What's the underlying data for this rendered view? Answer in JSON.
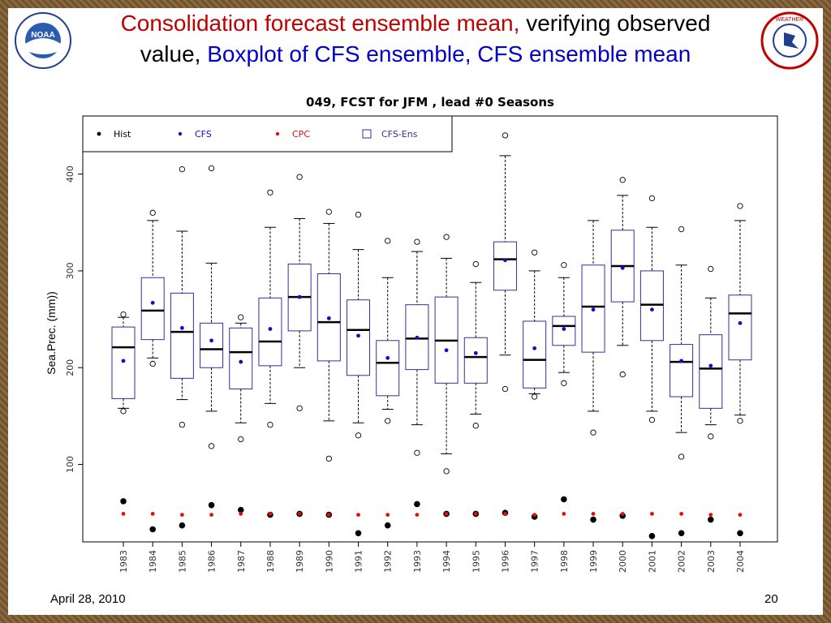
{
  "title": {
    "part1": "Consolidation forecast ensemble mean,",
    "part2": "verifying observed",
    "part3": "value,",
    "part4": "Boxplot of CFS ensemble, CFS ensemble mean"
  },
  "footer": {
    "date": "April 28, 2010",
    "page": "20"
  },
  "chart_data": {
    "type": "boxplot",
    "title": "049, FCST for JFM , lead #0 Seasons",
    "ylabel": "Sea.Prec. (mm))",
    "ylim": [
      20,
      460
    ],
    "yticks": [
      100,
      200,
      300,
      400
    ],
    "legend": {
      "position": "top-left",
      "entries": [
        {
          "label": "Hist",
          "color": "#000000",
          "marker": "dot"
        },
        {
          "label": "CFS",
          "color": "#1010c0",
          "marker": "star"
        },
        {
          "label": "CPC",
          "color": "#e01010",
          "marker": "star"
        },
        {
          "label": "CFS-Ens",
          "color": "#3030a0",
          "marker": "box"
        }
      ]
    },
    "years": [
      "1983",
      "1984",
      "1985",
      "1986",
      "1987",
      "1988",
      "1989",
      "1990",
      "1991",
      "1992",
      "1993",
      "1994",
      "1995",
      "1996",
      "1997",
      "1998",
      "1999",
      "2000",
      "2001",
      "2002",
      "2003",
      "2004"
    ],
    "boxes": [
      {
        "q1": 168,
        "median": 221,
        "q3": 242,
        "wlo": 158,
        "whi": 252,
        "outliers": [
          155,
          255
        ]
      },
      {
        "q1": 229,
        "median": 259,
        "q3": 293,
        "wlo": 210,
        "whi": 352,
        "outliers": [
          204,
          360
        ]
      },
      {
        "q1": 189,
        "median": 237,
        "q3": 277,
        "wlo": 167,
        "whi": 341,
        "outliers": [
          141,
          405
        ]
      },
      {
        "q1": 200,
        "median": 219,
        "q3": 246,
        "wlo": 155,
        "whi": 308,
        "outliers": [
          119,
          406
        ]
      },
      {
        "q1": 178,
        "median": 216,
        "q3": 241,
        "wlo": 143,
        "whi": 246,
        "outliers": [
          126,
          252
        ]
      },
      {
        "q1": 202,
        "median": 227,
        "q3": 272,
        "wlo": 163,
        "whi": 345,
        "outliers": [
          141,
          381
        ]
      },
      {
        "q1": 238,
        "median": 273,
        "q3": 307,
        "wlo": 200,
        "whi": 354,
        "outliers": [
          158,
          397
        ]
      },
      {
        "q1": 207,
        "median": 247,
        "q3": 297,
        "wlo": 145,
        "whi": 349,
        "outliers": [
          106,
          361
        ]
      },
      {
        "q1": 192,
        "median": 239,
        "q3": 270,
        "wlo": 143,
        "whi": 322,
        "outliers": [
          130,
          358
        ]
      },
      {
        "q1": 171,
        "median": 205,
        "q3": 228,
        "wlo": 157,
        "whi": 293,
        "outliers": [
          145,
          331
        ]
      },
      {
        "q1": 198,
        "median": 230,
        "q3": 265,
        "wlo": 141,
        "whi": 320,
        "outliers": [
          112,
          330
        ]
      },
      {
        "q1": 184,
        "median": 228,
        "q3": 273,
        "wlo": 111,
        "whi": 313,
        "outliers": [
          93,
          335
        ]
      },
      {
        "q1": 184,
        "median": 211,
        "q3": 231,
        "wlo": 152,
        "whi": 288,
        "outliers": [
          140,
          307
        ]
      },
      {
        "q1": 280,
        "median": 312,
        "q3": 330,
        "wlo": 213,
        "whi": 419,
        "outliers": [
          178,
          440
        ]
      },
      {
        "q1": 179,
        "median": 208,
        "q3": 248,
        "wlo": 173,
        "whi": 300,
        "outliers": [
          170,
          319
        ]
      },
      {
        "q1": 223,
        "median": 243,
        "q3": 253,
        "wlo": 195,
        "whi": 293,
        "outliers": [
          184,
          306
        ]
      },
      {
        "q1": 216,
        "median": 263,
        "q3": 306,
        "wlo": 155,
        "whi": 352,
        "outliers": [
          133
        ]
      },
      {
        "q1": 268,
        "median": 305,
        "q3": 342,
        "wlo": 223,
        "whi": 378,
        "outliers": [
          193,
          394
        ]
      },
      {
        "q1": 228,
        "median": 265,
        "q3": 300,
        "wlo": 155,
        "whi": 345,
        "outliers": [
          146,
          375
        ]
      },
      {
        "q1": 170,
        "median": 206,
        "q3": 224,
        "wlo": 133,
        "whi": 306,
        "outliers": [
          108,
          343
        ]
      },
      {
        "q1": 158,
        "median": 199,
        "q3": 234,
        "wlo": 141,
        "whi": 272,
        "outliers": [
          129,
          302
        ]
      },
      {
        "q1": 208,
        "median": 256,
        "q3": 275,
        "wlo": 151,
        "whi": 352,
        "outliers": [
          145,
          367
        ]
      }
    ],
    "series": [
      {
        "name": "Hist",
        "color": "#000000",
        "values": [
          62,
          33,
          37,
          58,
          53,
          48,
          49,
          48,
          29,
          37,
          59,
          49,
          49,
          50,
          46,
          64,
          43,
          47,
          26,
          29,
          43,
          29
        ]
      },
      {
        "name": "CFS",
        "color": "#1010c0",
        "values": [
          207,
          267,
          241,
          228,
          206,
          240,
          273,
          251,
          233,
          210,
          231,
          218,
          215,
          311,
          220,
          240,
          260,
          303,
          260,
          207,
          202,
          246
        ]
      },
      {
        "name": "CPC",
        "color": "#e01010",
        "values": [
          49,
          49,
          48,
          48,
          49,
          49,
          49,
          48,
          48,
          48,
          48,
          49,
          49,
          49,
          48,
          49,
          49,
          49,
          49,
          49,
          48,
          48
        ]
      }
    ]
  }
}
